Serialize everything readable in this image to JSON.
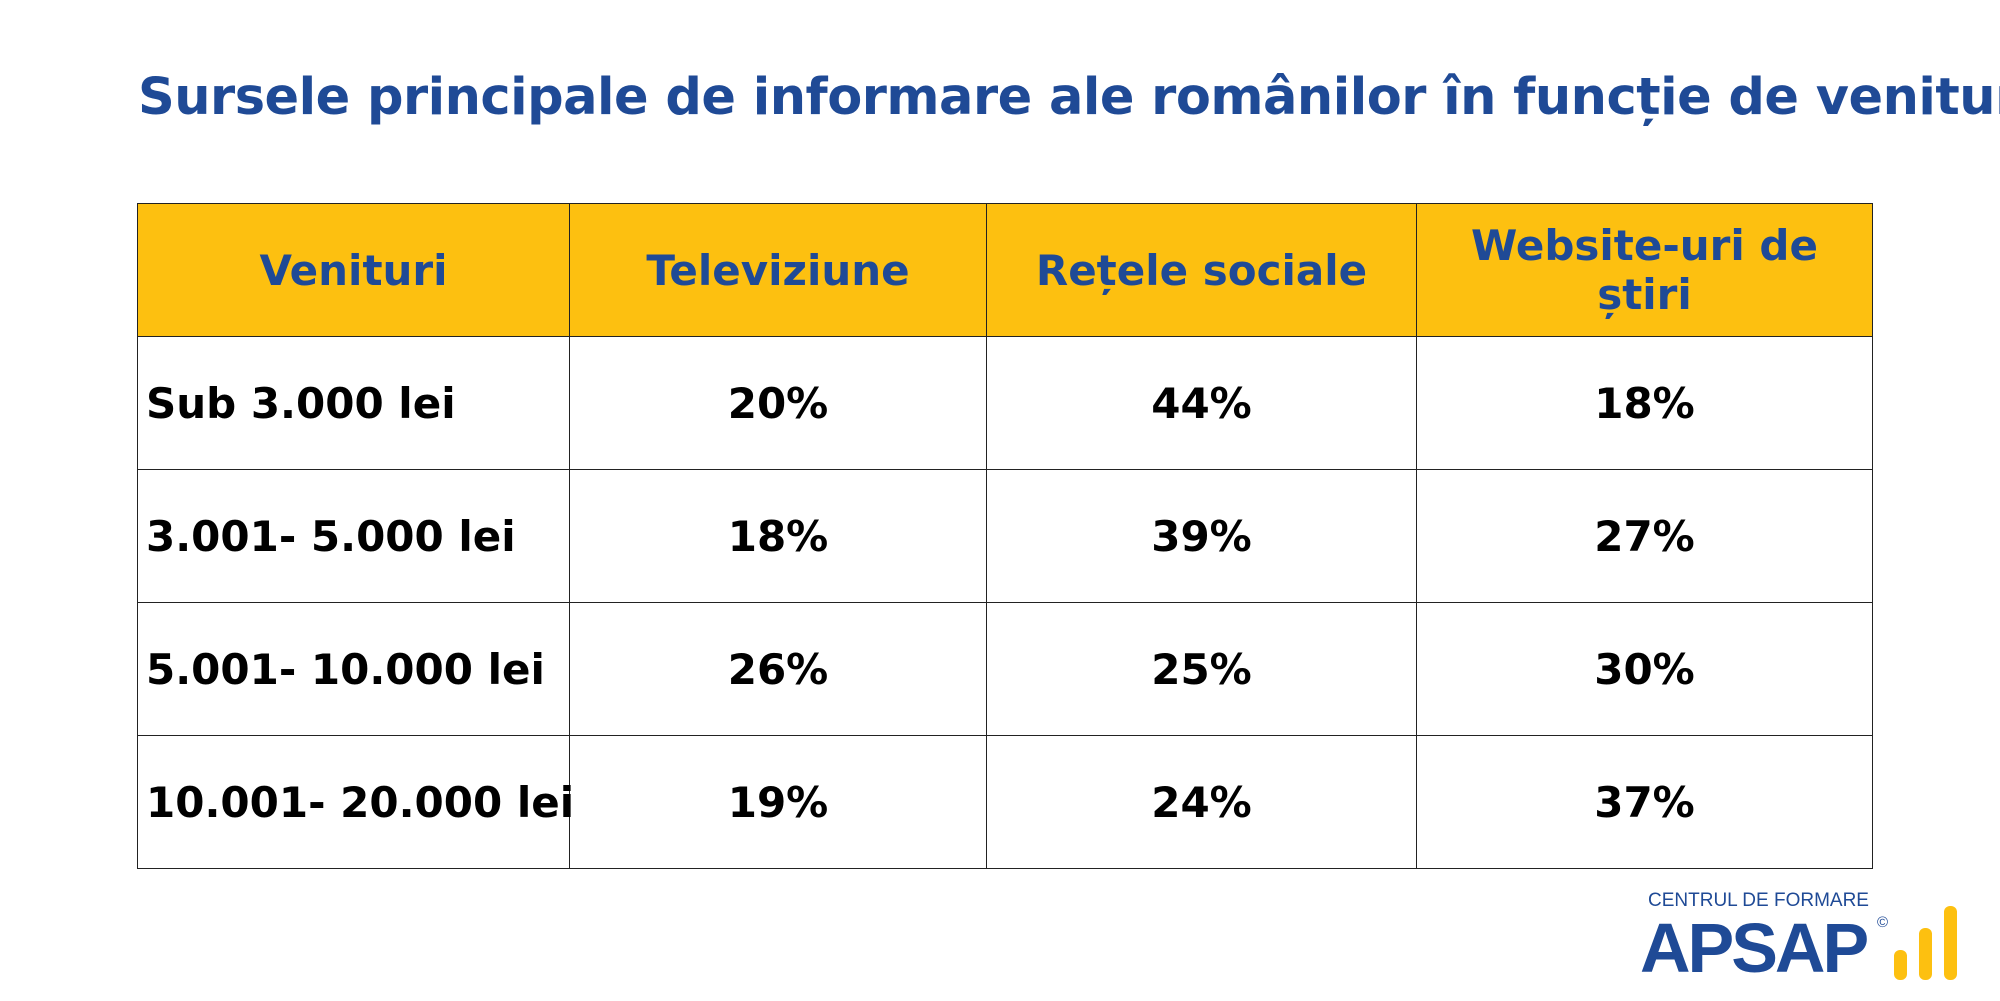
{
  "title": "Sursele principale de informare ale românilor în funcție de venituri",
  "chart_data": {
    "type": "table",
    "title": "Sursele principale de informare ale românilor în funcție de venituri",
    "columns": [
      "Venituri",
      "Televiziune",
      "Rețele sociale",
      "Website-uri de știri"
    ],
    "rows": [
      {
        "label": "Sub 3.000 lei",
        "values": [
          "20%",
          "44%",
          "18%"
        ]
      },
      {
        "label": "3.001- 5.000 lei",
        "values": [
          "18%",
          "39%",
          "27%"
        ]
      },
      {
        "label": "5.001- 10.000 lei",
        "values": [
          "26%",
          "25%",
          "30%"
        ]
      },
      {
        "label": "10.001- 20.000 lei",
        "values": [
          "19%",
          "24%",
          "37%"
        ]
      }
    ]
  },
  "logo": {
    "top_text": "CENTRUL DE FORMARE",
    "main_text": "APSAP",
    "copyright": "©",
    "accent_color": "#fdc010",
    "brand_color": "#1f4a96"
  },
  "colors": {
    "header_background": "#fdc010",
    "header_text": "#1f4a96",
    "title_text": "#1f4a96"
  }
}
